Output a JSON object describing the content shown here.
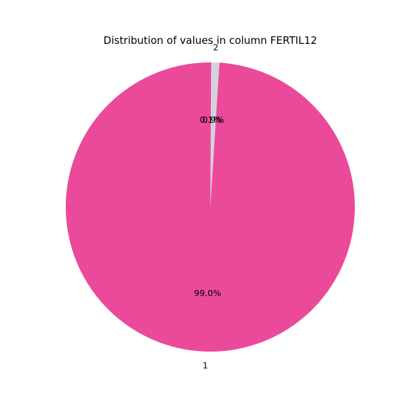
{
  "chart_data": {
    "type": "pie",
    "title": "Distribution of values in column FERTIL12",
    "start_angle_deg": 90,
    "direction": "counterclockwise",
    "slices": [
      {
        "label": "1",
        "value": 99.0,
        "pct_label": "99.0%",
        "color": "#eb4a9a"
      },
      {
        "label": "2",
        "value": 0.9,
        "pct_label": "0.9%",
        "color": "#d4d2de"
      },
      {
        "label": "",
        "value": 0.1,
        "pct_label": "0.1%",
        "color": "#eb4a9a"
      }
    ]
  }
}
